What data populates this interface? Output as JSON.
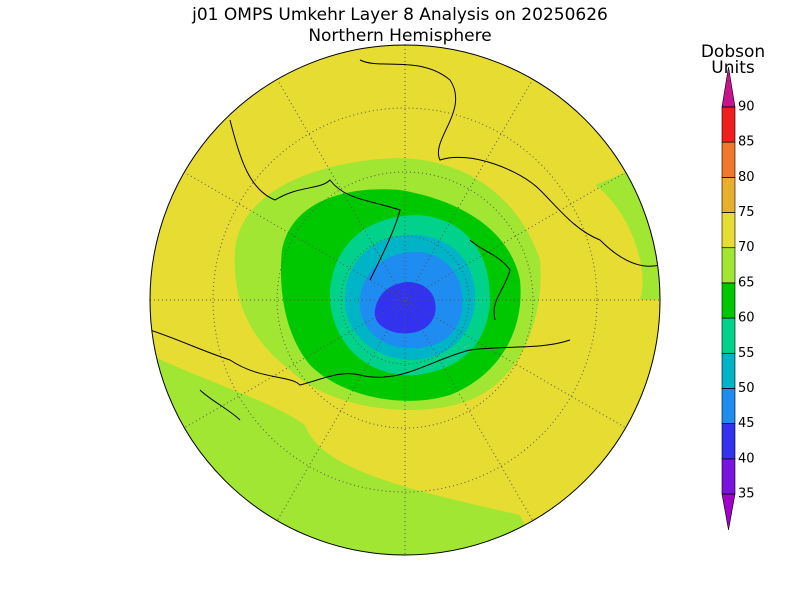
{
  "map": {
    "title": "j01 OMPS Umkehr Layer 8 Analysis on 20250626",
    "subtitle": "Northern Hemisphere"
  },
  "colorbar": {
    "label_lines": [
      "Dobson",
      "Units"
    ],
    "levels": [
      35,
      40,
      45,
      50,
      55,
      60,
      65,
      70,
      75,
      80,
      85,
      90
    ],
    "colors": [
      "#7814dc",
      "#3232f0",
      "#1e8cf0",
      "#00b4c8",
      "#00d28c",
      "#00c800",
      "#a0e632",
      "#e6dc32",
      "#e6af2d",
      "#f07828",
      "#f01e1e"
    ],
    "over_color": "#c8148c",
    "under_color": "#a000c8"
  }
}
